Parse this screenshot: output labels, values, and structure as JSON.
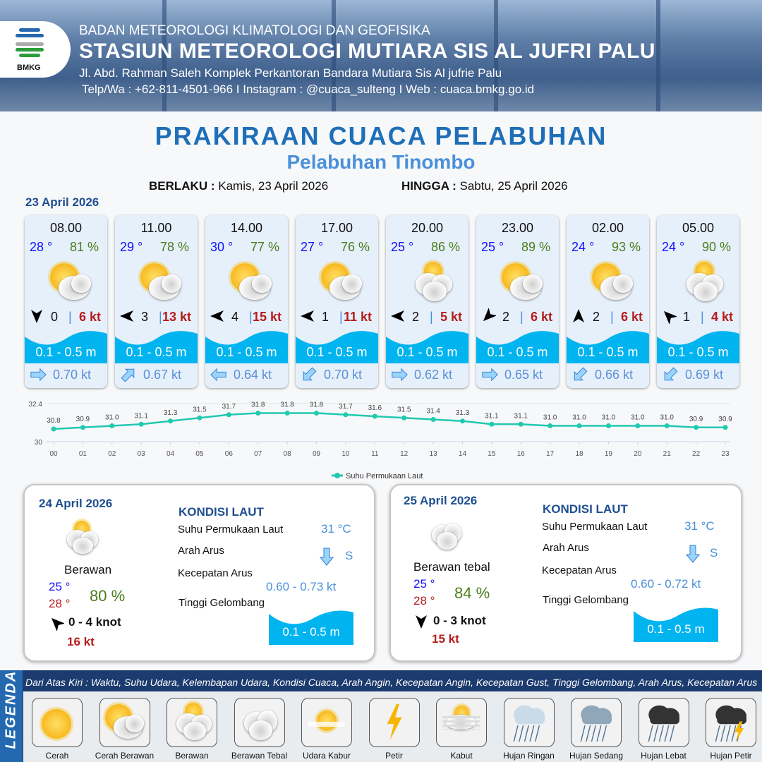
{
  "header": {
    "agency": "BADAN METEOROLOGI KLIMATOLOGI DAN GEOFISIKA",
    "station": "STASIUN METEOROLOGI MUTIARA SIS AL JUFRI PALU",
    "address": "Jl. Abd. Rahman Saleh Komplek Perkantoran Bandara Mutiara Sis Al jufrie Palu",
    "contact": "Telp/Wa : +62-811-4501-966  I  Instagram : @cuaca_sulteng  I  Web : cuaca.bmkg.go.id",
    "logo_text": "BMKG"
  },
  "title": "PRAKIRAAN CUACA PELABUHAN",
  "subtitle": "Pelabuhan Tinombo",
  "validity": {
    "from_label": "BERLAKU :",
    "from": "Kamis, 23 April 2026",
    "to_label": "HINGGA :",
    "to": "Sabtu, 25 April 2026"
  },
  "day1": {
    "date": "23 April 2026",
    "forecasts": [
      {
        "time": "08.00",
        "temp": "28 °",
        "hum": "81 %",
        "icon": "cerah-berawan",
        "wind_dir": "S",
        "wind": "0",
        "gust": "6 kt",
        "wave": "0.1 - 0.5 m",
        "current_dir": "E",
        "current": "0.70 kt"
      },
      {
        "time": "11.00",
        "temp": "29 °",
        "hum": "78 %",
        "icon": "cerah-berawan",
        "wind_dir": "W",
        "wind": "3",
        "gust": "13 kt",
        "wave": "0.1 - 0.5 m",
        "current_dir": "NE",
        "current": "0.67 kt"
      },
      {
        "time": "14.00",
        "temp": "30 °",
        "hum": "77 %",
        "icon": "cerah-berawan",
        "wind_dir": "W",
        "wind": "4",
        "gust": "15 kt",
        "wave": "0.1 - 0.5 m",
        "current_dir": "W",
        "current": "0.64 kt"
      },
      {
        "time": "17.00",
        "temp": "27 °",
        "hum": "76 %",
        "icon": "cerah-berawan",
        "wind_dir": "W",
        "wind": "1",
        "gust": "11 kt",
        "wave": "0.1 - 0.5 m",
        "current_dir": "SW",
        "current": "0.70 kt"
      },
      {
        "time": "20.00",
        "temp": "25 °",
        "hum": "86 %",
        "icon": "berawan",
        "wind_dir": "W",
        "wind": "2",
        "gust": "5 kt",
        "wave": "0.1 - 0.5 m",
        "current_dir": "E",
        "current": "0.62 kt"
      },
      {
        "time": "23.00",
        "temp": "25 °",
        "hum": "89 %",
        "icon": "cerah-berawan",
        "wind_dir": "SW",
        "wind": "2",
        "gust": "6 kt",
        "wave": "0.1 - 0.5 m",
        "current_dir": "E",
        "current": "0.65 kt"
      },
      {
        "time": "02.00",
        "temp": "24 °",
        "hum": "93 %",
        "icon": "cerah-berawan",
        "wind_dir": "N",
        "wind": "2",
        "gust": "6 kt",
        "wave": "0.1 - 0.5 m",
        "current_dir": "SW",
        "current": "0.66 kt"
      },
      {
        "time": "05.00",
        "temp": "24 °",
        "hum": "90 %",
        "icon": "berawan",
        "wind_dir": "NW",
        "wind": "1",
        "gust": "4 kt",
        "wave": "0.1 - 0.5 m",
        "current_dir": "SW",
        "current": "0.69 kt"
      }
    ]
  },
  "chart_data": {
    "type": "line",
    "categories": [
      "00",
      "01",
      "02",
      "03",
      "04",
      "05",
      "06",
      "07",
      "08",
      "09",
      "10",
      "11",
      "12",
      "13",
      "14",
      "15",
      "16",
      "17",
      "18",
      "19",
      "20",
      "21",
      "22",
      "23"
    ],
    "series": [
      {
        "name": "Suhu Permukaan Laut",
        "values": [
          30.8,
          30.9,
          31.0,
          31.1,
          31.3,
          31.5,
          31.7,
          31.8,
          31.8,
          31.8,
          31.7,
          31.6,
          31.5,
          31.4,
          31.3,
          31.1,
          31.1,
          31.0,
          31.0,
          31.0,
          31.0,
          31.0,
          30.9,
          30.9
        ],
        "color": "#20c9b0"
      }
    ],
    "ylim": [
      30,
      32.4
    ],
    "yticks": [
      "30",
      "32.4"
    ],
    "grid": true,
    "legend": "bottom"
  },
  "days": [
    {
      "date": "24 April 2026",
      "icon": "berawan",
      "condition": "Berawan",
      "tmin": "25 °",
      "tmax": "28 °",
      "hum": "80 %",
      "wind_dir": "NW",
      "wind": "0  - 4 knot",
      "gust": "16 kt",
      "sea_title": "KONDISI LAUT",
      "sst_label": "Suhu Permukaan Laut",
      "sst": "31 °C",
      "dir_label": "Arah Arus",
      "dir": "S",
      "speed_label": "Kecepatan Arus",
      "speed": "0.60  - 0.73 kt",
      "wave_label": "Tinggi Gelombang",
      "wave": "0.1 - 0.5 m"
    },
    {
      "date": "25 April 2026",
      "icon": "berawan-tebal",
      "condition": "Berawan tebal",
      "tmin": "25 °",
      "tmax": "28 °",
      "hum": "84 %",
      "wind_dir": "S",
      "wind": "0  - 3 knot",
      "gust": "15 kt",
      "sea_title": "KONDISI LAUT",
      "sst_label": "Suhu Permukaan Laut",
      "sst": "31 °C",
      "dir_label": "Arah Arus",
      "dir": "S",
      "speed_label": "Kecepatan Arus",
      "speed": "0.60  - 0.72 kt",
      "wave_label": "Tinggi Gelombang",
      "wave": "0.1 - 0.5 m"
    }
  ],
  "legend": {
    "tag": "LEGENDA",
    "description": "Dari Atas Kiri : Waktu, Suhu Udara, Kelembapan Udara, Kondisi Cuaca, Arah Angin, Kecepatan Angin, Kecepatan Gust, Tinggi Gelombang, Arah Arus, Kecepatan Arus",
    "items": [
      {
        "label": "Cerah",
        "icon": "cerah"
      },
      {
        "label": "Cerah Berawan",
        "icon": "cerah-berawan"
      },
      {
        "label": "Berawan",
        "icon": "berawan"
      },
      {
        "label": "Berawan Tebal",
        "icon": "berawan-tebal"
      },
      {
        "label": "Udara Kabur",
        "icon": "udara-kabur"
      },
      {
        "label": "Petir",
        "icon": "petir"
      },
      {
        "label": "Kabut",
        "icon": "kabut"
      },
      {
        "label": "Hujan Ringan",
        "icon": "hujan-ringan"
      },
      {
        "label": "Hujan Sedang",
        "icon": "hujan-sedang"
      },
      {
        "label": "Hujan Lebat",
        "icon": "hujan-lebat"
      },
      {
        "label": "Hujan Petir",
        "icon": "hujan-petir"
      }
    ]
  },
  "colors": {
    "title": "#1e6fb8",
    "wave": "#00b4f0",
    "temp": "#1010ff",
    "humidity": "#4a7d1a",
    "gust": "#b71c1c",
    "legend_bg": "#1c3b6e"
  }
}
